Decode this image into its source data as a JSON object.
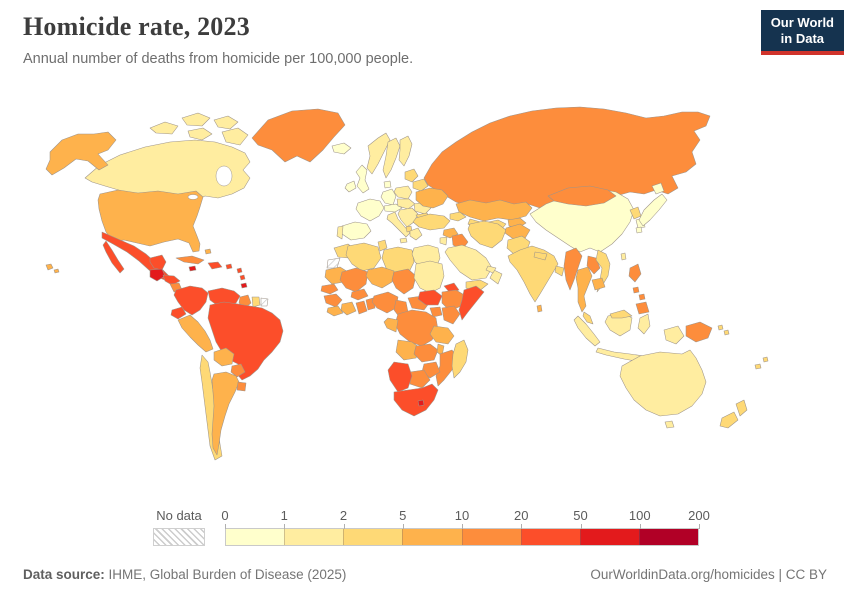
{
  "header": {
    "title": "Homicide rate, 2023",
    "subtitle": "Annual number of deaths from homicide per 100,000 people."
  },
  "logo": {
    "line1": "Our World",
    "line2": "in Data",
    "bg_color": "#15334f",
    "accent_color": "#d0332b"
  },
  "legend": {
    "no_data_label": "No data",
    "tick_labels": [
      "0",
      "1",
      "2",
      "5",
      "10",
      "20",
      "50",
      "100",
      "200"
    ]
  },
  "footer": {
    "source_label": "Data source:",
    "source_value": " IHME, Global Burden of Disease (2025)",
    "link_text": "OurWorldinData.org/homicides | CC BY"
  },
  "chart_data": {
    "type": "heatmap",
    "variant": "choropleth-world-map",
    "title": "Homicide rate, 2023",
    "unit": "annual deaths from homicide per 100,000 people",
    "year": 2023,
    "legend_position": "bottom",
    "scale": "binned, thresholds 0,1,2,5,10,20,50,100,200",
    "legend_bins": [
      {
        "label": "0-1",
        "color": "#ffffcc"
      },
      {
        "label": "1-2",
        "color": "#ffeda0"
      },
      {
        "label": "2-5",
        "color": "#fed976"
      },
      {
        "label": "5-10",
        "color": "#feb24c"
      },
      {
        "label": "10-20",
        "color": "#fd8d3c"
      },
      {
        "label": "20-50",
        "color": "#fc4e2a"
      },
      {
        "label": "50-100",
        "color": "#e31a1c"
      },
      {
        "label": "100-200",
        "color": "#b10026"
      }
    ],
    "countries": [
      {
        "id": "canada",
        "name": "Canada",
        "bin": "1-2"
      },
      {
        "id": "usa",
        "name": "United States",
        "bin": "5-10"
      },
      {
        "id": "greenland",
        "name": "Greenland",
        "bin": "10-20"
      },
      {
        "id": "mexico",
        "name": "Mexico",
        "bin": "20-50"
      },
      {
        "id": "guatemala",
        "name": "Guatemala",
        "bin": "50-100"
      },
      {
        "id": "honduras",
        "name": "Honduras",
        "bin": "20-50"
      },
      {
        "id": "nicaragua",
        "name": "Nicaragua",
        "bin": "10-20"
      },
      {
        "id": "costa-rica",
        "name": "Costa Rica",
        "bin": "10-20"
      },
      {
        "id": "panama",
        "name": "Panama",
        "bin": "20-50"
      },
      {
        "id": "cuba",
        "name": "Cuba",
        "bin": "10-20"
      },
      {
        "id": "jamaica",
        "name": "Jamaica",
        "bin": "50-100"
      },
      {
        "id": "hispaniola",
        "name": "Haiti / Dominican Republic",
        "bin": "20-50"
      },
      {
        "id": "puerto-rico",
        "name": "Puerto Rico",
        "bin": "20-50"
      },
      {
        "id": "lesser-antilles",
        "name": "Lesser Antilles",
        "bin": "20-50"
      },
      {
        "id": "trinidad",
        "name": "Trinidad and Tobago",
        "bin": "50-100"
      },
      {
        "id": "bahamas",
        "name": "Bahamas",
        "bin": "5-10"
      },
      {
        "id": "colombia",
        "name": "Colombia",
        "bin": "20-50"
      },
      {
        "id": "venezuela",
        "name": "Venezuela",
        "bin": "20-50"
      },
      {
        "id": "guyana",
        "name": "Guyana",
        "bin": "10-20"
      },
      {
        "id": "suriname",
        "name": "Suriname",
        "bin": "2-5"
      },
      {
        "id": "french-guiana",
        "name": "French Guiana",
        "bin": "no-data"
      },
      {
        "id": "ecuador",
        "name": "Ecuador",
        "bin": "20-50"
      },
      {
        "id": "peru",
        "name": "Peru",
        "bin": "5-10"
      },
      {
        "id": "brazil",
        "name": "Brazil",
        "bin": "20-50"
      },
      {
        "id": "bolivia",
        "name": "Bolivia",
        "bin": "5-10"
      },
      {
        "id": "paraguay",
        "name": "Paraguay",
        "bin": "10-20"
      },
      {
        "id": "chile",
        "name": "Chile",
        "bin": "2-5"
      },
      {
        "id": "argentina",
        "name": "Argentina",
        "bin": "5-10"
      },
      {
        "id": "uruguay",
        "name": "Uruguay",
        "bin": "10-20"
      },
      {
        "id": "iceland",
        "name": "Iceland",
        "bin": "0-1"
      },
      {
        "id": "norway",
        "name": "Norway",
        "bin": "1-2"
      },
      {
        "id": "sweden",
        "name": "Sweden",
        "bin": "1-2"
      },
      {
        "id": "finland",
        "name": "Finland",
        "bin": "1-2"
      },
      {
        "id": "denmark",
        "name": "Denmark",
        "bin": "0-1"
      },
      {
        "id": "uk",
        "name": "United Kingdom",
        "bin": "0-1"
      },
      {
        "id": "ireland",
        "name": "Ireland",
        "bin": "0-1"
      },
      {
        "id": "france",
        "name": "France",
        "bin": "0-1"
      },
      {
        "id": "spain",
        "name": "Spain",
        "bin": "0-1"
      },
      {
        "id": "portugal",
        "name": "Portugal",
        "bin": "1-2"
      },
      {
        "id": "germany",
        "name": "Germany",
        "bin": "0-1"
      },
      {
        "id": "switzerland-austria",
        "name": "Switzerland / Austria",
        "bin": "0-1"
      },
      {
        "id": "italy",
        "name": "Italy",
        "bin": "1-2"
      },
      {
        "id": "poland",
        "name": "Poland",
        "bin": "1-2"
      },
      {
        "id": "czech-slovakia-hungary",
        "name": "Czechia / Slovakia / Hungary",
        "bin": "1-2"
      },
      {
        "id": "balkans",
        "name": "Western Balkans",
        "bin": "1-2"
      },
      {
        "id": "albania",
        "name": "Albania",
        "bin": "2-5"
      },
      {
        "id": "greece",
        "name": "Greece",
        "bin": "1-2"
      },
      {
        "id": "romania",
        "name": "Romania",
        "bin": "1-2"
      },
      {
        "id": "bulgaria",
        "name": "Bulgaria",
        "bin": "2-5"
      },
      {
        "id": "baltics",
        "name": "Baltic states",
        "bin": "2-5"
      },
      {
        "id": "belarus",
        "name": "Belarus",
        "bin": "2-5"
      },
      {
        "id": "ukraine",
        "name": "Ukraine",
        "bin": "5-10"
      },
      {
        "id": "russia",
        "name": "Russia",
        "bin": "10-20"
      },
      {
        "id": "kazakhstan",
        "name": "Kazakhstan",
        "bin": "5-10"
      },
      {
        "id": "uzbekistan-turkmenistan",
        "name": "Uzbekistan / Turkmenistan",
        "bin": "2-5"
      },
      {
        "id": "kyrgyzstan-tajikistan",
        "name": "Kyrgyzstan / Tajikistan",
        "bin": "5-10"
      },
      {
        "id": "caucasus",
        "name": "Caucasus",
        "bin": "2-5"
      },
      {
        "id": "turkey",
        "name": "Turkey",
        "bin": "2-5"
      },
      {
        "id": "syria",
        "name": "Syria",
        "bin": "5-10"
      },
      {
        "id": "jordan-israel",
        "name": "Jordan / Israel",
        "bin": "1-2"
      },
      {
        "id": "iraq",
        "name": "Iraq",
        "bin": "10-20"
      },
      {
        "id": "iran",
        "name": "Iran",
        "bin": "2-5"
      },
      {
        "id": "saudi-arabia",
        "name": "Saudi Arabia",
        "bin": "1-2"
      },
      {
        "id": "yemen",
        "name": "Yemen",
        "bin": "2-5"
      },
      {
        "id": "oman",
        "name": "Oman",
        "bin": "1-2"
      },
      {
        "id": "uae-qatar",
        "name": "UAE / Qatar",
        "bin": "1-2"
      },
      {
        "id": "afghanistan",
        "name": "Afghanistan",
        "bin": "5-10"
      },
      {
        "id": "pakistan",
        "name": "Pakistan",
        "bin": "2-5"
      },
      {
        "id": "india",
        "name": "India",
        "bin": "2-5"
      },
      {
        "id": "nepal",
        "name": "Nepal",
        "bin": "2-5"
      },
      {
        "id": "bangladesh",
        "name": "Bangladesh",
        "bin": "2-5"
      },
      {
        "id": "sri-lanka",
        "name": "Sri Lanka",
        "bin": "5-10"
      },
      {
        "id": "china",
        "name": "China",
        "bin": "0-1"
      },
      {
        "id": "mongolia",
        "name": "Mongolia",
        "bin": "10-20"
      },
      {
        "id": "north-korea",
        "name": "North Korea",
        "bin": "2-5"
      },
      {
        "id": "south-korea",
        "name": "South Korea",
        "bin": "0-1"
      },
      {
        "id": "japan",
        "name": "Japan",
        "bin": "0-1"
      },
      {
        "id": "taiwan",
        "name": "Taiwan",
        "bin": "1-2"
      },
      {
        "id": "myanmar",
        "name": "Myanmar",
        "bin": "10-20"
      },
      {
        "id": "thailand",
        "name": "Thailand",
        "bin": "5-10"
      },
      {
        "id": "laos",
        "name": "Laos",
        "bin": "10-20"
      },
      {
        "id": "vietnam",
        "name": "Vietnam",
        "bin": "2-5"
      },
      {
        "id": "cambodia",
        "name": "Cambodia",
        "bin": "5-10"
      },
      {
        "id": "malaysia",
        "name": "Malaysia",
        "bin": "2-5"
      },
      {
        "id": "indonesia",
        "name": "Indonesia",
        "bin": "1-2"
      },
      {
        "id": "philippines",
        "name": "Philippines",
        "bin": "10-20"
      },
      {
        "id": "morocco",
        "name": "Morocco",
        "bin": "2-5"
      },
      {
        "id": "western-sahara",
        "name": "Western Sahara",
        "bin": "no-data"
      },
      {
        "id": "algeria",
        "name": "Algeria",
        "bin": "2-5"
      },
      {
        "id": "tunisia",
        "name": "Tunisia",
        "bin": "2-5"
      },
      {
        "id": "libya",
        "name": "Libya",
        "bin": "2-5"
      },
      {
        "id": "egypt",
        "name": "Egypt",
        "bin": "1-2"
      },
      {
        "id": "mauritania",
        "name": "Mauritania",
        "bin": "5-10"
      },
      {
        "id": "senegal",
        "name": "Senegal / Gambia",
        "bin": "10-20"
      },
      {
        "id": "mali",
        "name": "Mali",
        "bin": "10-20"
      },
      {
        "id": "burkina-faso",
        "name": "Burkina Faso",
        "bin": "10-20"
      },
      {
        "id": "niger",
        "name": "Niger",
        "bin": "5-10"
      },
      {
        "id": "chad",
        "name": "Chad",
        "bin": "10-20"
      },
      {
        "id": "sudan",
        "name": "Sudan",
        "bin": "1-2"
      },
      {
        "id": "eritrea",
        "name": "Eritrea",
        "bin": "20-50"
      },
      {
        "id": "guinea",
        "name": "Guinea",
        "bin": "10-20"
      },
      {
        "id": "sierra-leone-liberia",
        "name": "Sierra Leone / Liberia",
        "bin": "5-10"
      },
      {
        "id": "ivory-coast",
        "name": "Côte d'Ivoire",
        "bin": "5-10"
      },
      {
        "id": "ghana",
        "name": "Ghana",
        "bin": "10-20"
      },
      {
        "id": "benin-togo",
        "name": "Benin / Togo",
        "bin": "10-20"
      },
      {
        "id": "nigeria",
        "name": "Nigeria",
        "bin": "10-20"
      },
      {
        "id": "cameroon",
        "name": "Cameroon",
        "bin": "10-20"
      },
      {
        "id": "central-african-republic",
        "name": "Central African Republic",
        "bin": "10-20"
      },
      {
        "id": "south-sudan",
        "name": "South Sudan",
        "bin": "20-50"
      },
      {
        "id": "ethiopia",
        "name": "Ethiopia",
        "bin": "10-20"
      },
      {
        "id": "somalia",
        "name": "Somalia",
        "bin": "20-50"
      },
      {
        "id": "uganda",
        "name": "Uganda",
        "bin": "10-20"
      },
      {
        "id": "kenya",
        "name": "Kenya",
        "bin": "10-20"
      },
      {
        "id": "rwanda-burundi",
        "name": "Rwanda / Burundi",
        "bin": "20-50"
      },
      {
        "id": "drc",
        "name": "Democratic Republic of Congo",
        "bin": "10-20"
      },
      {
        "id": "gabon-congo",
        "name": "Gabon / Congo",
        "bin": "5-10"
      },
      {
        "id": "tanzania",
        "name": "Tanzania",
        "bin": "5-10"
      },
      {
        "id": "angola",
        "name": "Angola",
        "bin": "5-10"
      },
      {
        "id": "zambia",
        "name": "Zambia",
        "bin": "10-20"
      },
      {
        "id": "malawi",
        "name": "Malawi",
        "bin": "5-10"
      },
      {
        "id": "mozambique",
        "name": "Mozambique",
        "bin": "10-20"
      },
      {
        "id": "zimbabwe",
        "name": "Zimbabwe",
        "bin": "10-20"
      },
      {
        "id": "botswana",
        "name": "Botswana",
        "bin": "10-20"
      },
      {
        "id": "namibia",
        "name": "Namibia",
        "bin": "20-50"
      },
      {
        "id": "south-africa",
        "name": "South Africa",
        "bin": "20-50"
      },
      {
        "id": "lesotho",
        "name": "Lesotho",
        "bin": "50-100"
      },
      {
        "id": "madagascar",
        "name": "Madagascar",
        "bin": "2-5"
      },
      {
        "id": "australia",
        "name": "Australia",
        "bin": "1-2"
      },
      {
        "id": "png",
        "name": "Papua New Guinea",
        "bin": "10-20"
      },
      {
        "id": "new-zealand",
        "name": "New Zealand",
        "bin": "2-5"
      },
      {
        "id": "fiji",
        "name": "Fiji / New Caledonia",
        "bin": "2-5"
      },
      {
        "id": "solomon-islands",
        "name": "Solomon Islands",
        "bin": "2-5"
      }
    ]
  }
}
